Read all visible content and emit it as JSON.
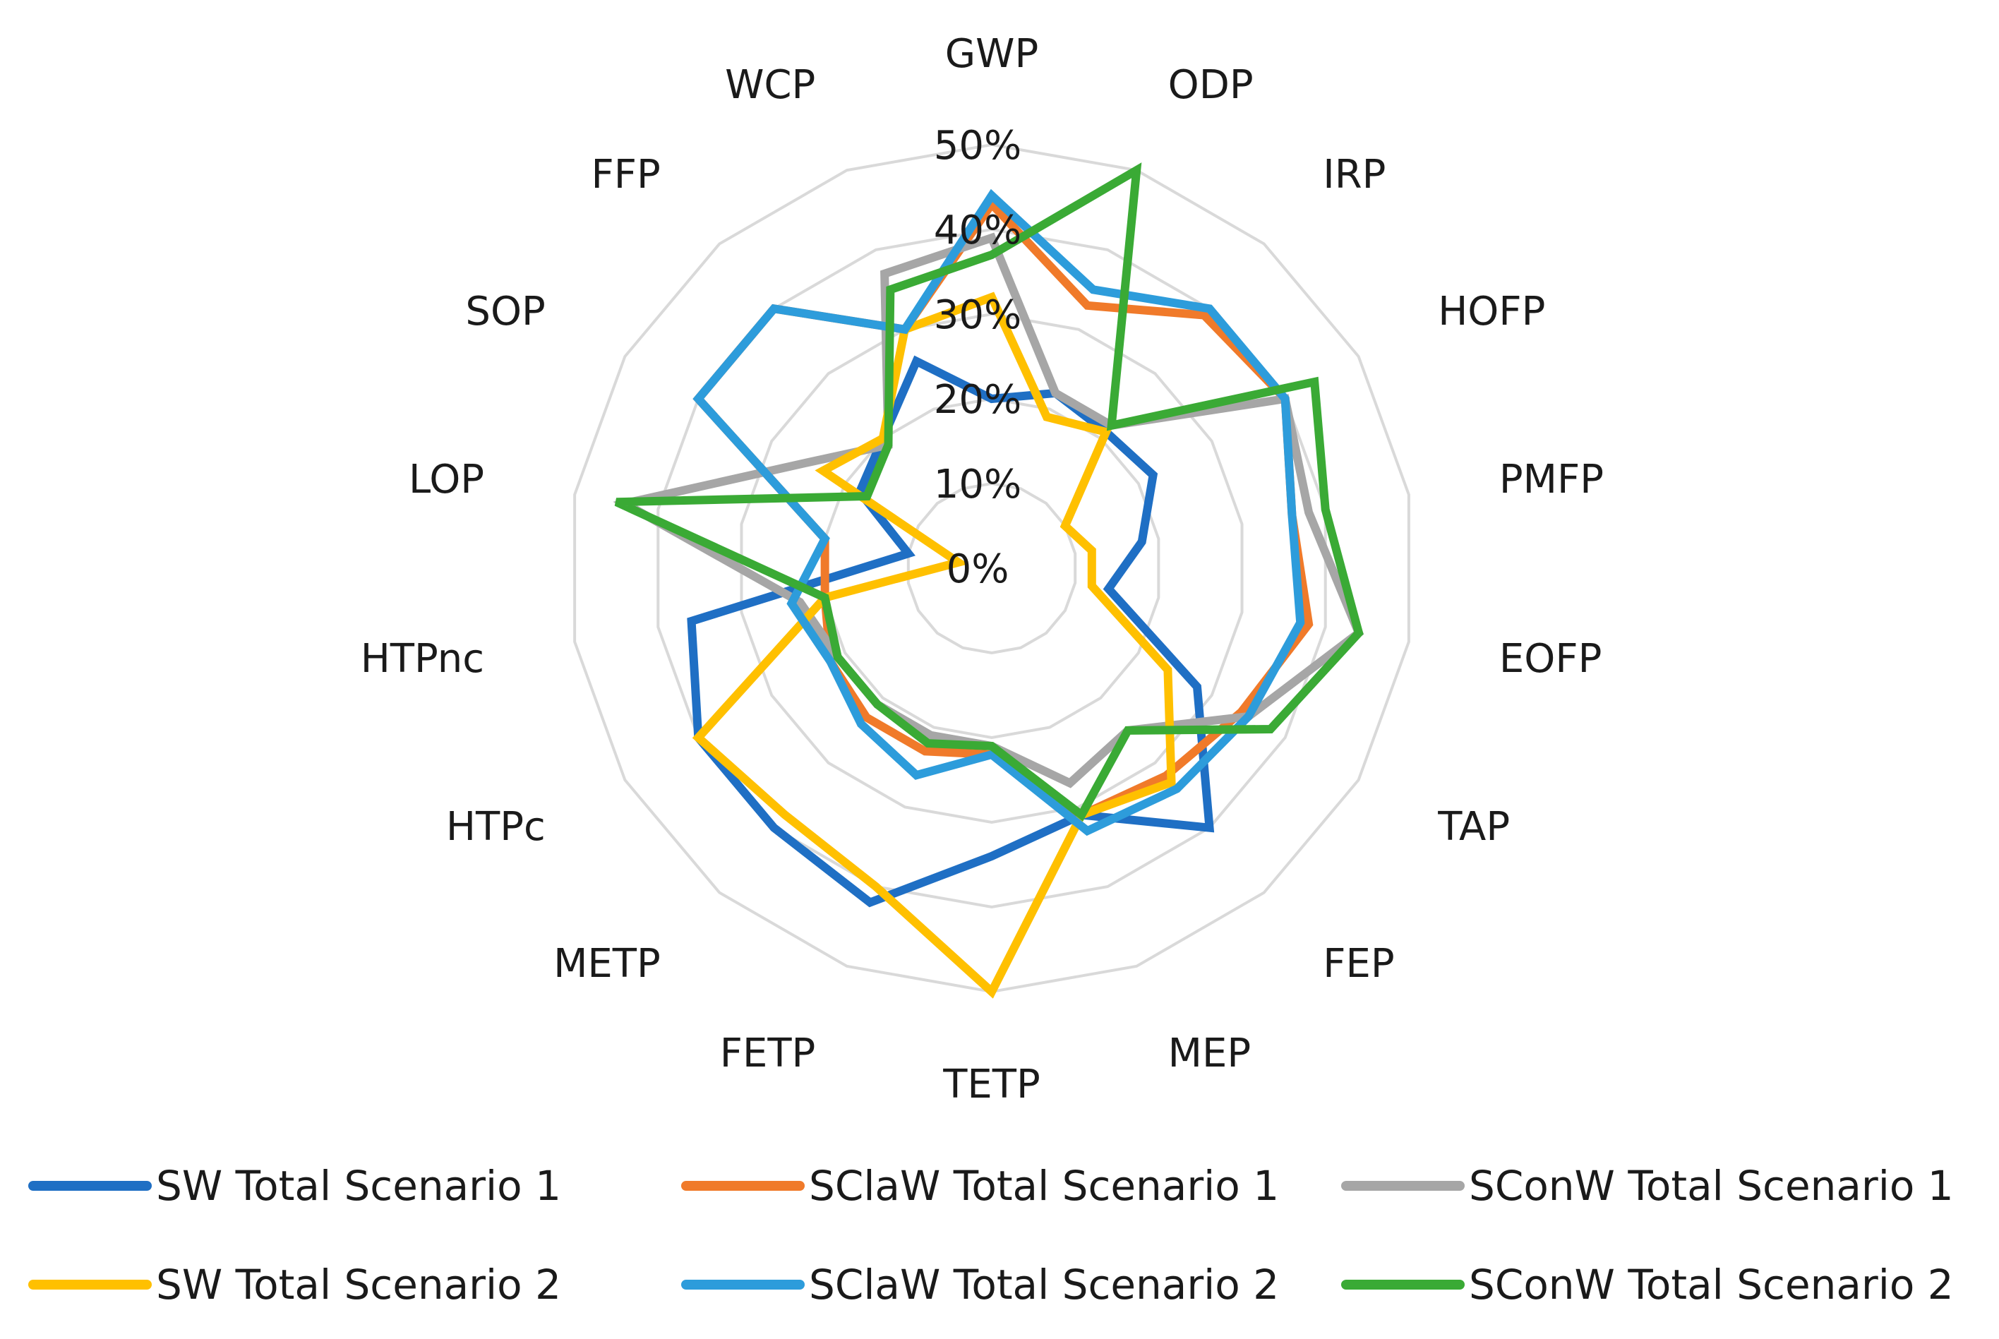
{
  "chart_data": {
    "type": "radar",
    "title": "",
    "axes": [
      "GWP",
      "ODP",
      "IRP",
      "HOFP",
      "PMFP",
      "EOFP",
      "TAP",
      "FEP",
      "MEP",
      "TETP",
      "FETP",
      "METP",
      "HTPc",
      "HTPnc",
      "LOP",
      "SOP",
      "FFP",
      "WCP"
    ],
    "r_ticks": [
      0,
      10,
      20,
      30,
      40,
      50
    ],
    "r_tick_labels": [
      "0%",
      "10%",
      "20%",
      "30%",
      "40%",
      "50%"
    ],
    "r_range": [
      0,
      50
    ],
    "grid": true,
    "legend_position": "bottom",
    "series": [
      {
        "name": "SW Total Scenario 1",
        "color": "#1F6FC4",
        "values": [
          20,
          22,
          21,
          22,
          18,
          14,
          28,
          40,
          31,
          34,
          42,
          40,
          40,
          36,
          10,
          18,
          20,
          26
        ]
      },
      {
        "name": "SClaW Total Scenario 1",
        "color": "#F07A2A",
        "values": [
          43,
          33,
          39,
          40,
          36,
          38,
          34,
          32,
          31,
          22,
          23,
          23,
          22,
          20,
          20,
          40,
          40,
          30
        ]
      },
      {
        "name": "SConW Total Scenario 1",
        "color": "#A6A6A6",
        "values": [
          39,
          22,
          22,
          40,
          38,
          44,
          35,
          25,
          27,
          21,
          21,
          21,
          21,
          23,
          44,
          25,
          19,
          37
        ]
      },
      {
        "name": "SW Total Scenario 2",
        "color": "#FFC000",
        "values": [
          32,
          19,
          21,
          10,
          12,
          12,
          24,
          33,
          31,
          50,
          40,
          38,
          40,
          20,
          4,
          23,
          20,
          30
        ]
      },
      {
        "name": "SClaW Total Scenario 2",
        "color": "#2D9CDB",
        "values": [
          44,
          35,
          40,
          40,
          36,
          37,
          35,
          34,
          33,
          22,
          26,
          24,
          22,
          24,
          20,
          40,
          40,
          30
        ]
      },
      {
        "name": "SConW Total Scenario 2",
        "color": "#3AAA35",
        "values": [
          37,
          50,
          22,
          44,
          40,
          44,
          38,
          25,
          31,
          21,
          22,
          21,
          21,
          20,
          45,
          17,
          19,
          35
        ]
      }
    ]
  },
  "legend": {
    "items": [
      {
        "label": "SW Total Scenario 1",
        "color": "#1F6FC4"
      },
      {
        "label": "SClaW Total Scenario 1",
        "color": "#F07A2A"
      },
      {
        "label": "SConW Total Scenario 1",
        "color": "#A6A6A6"
      },
      {
        "label": "SW Total Scenario 2",
        "color": "#FFC000"
      },
      {
        "label": "SClaW Total Scenario 2",
        "color": "#2D9CDB"
      },
      {
        "label": "SConW Total Scenario 2",
        "color": "#3AAA35"
      }
    ]
  }
}
